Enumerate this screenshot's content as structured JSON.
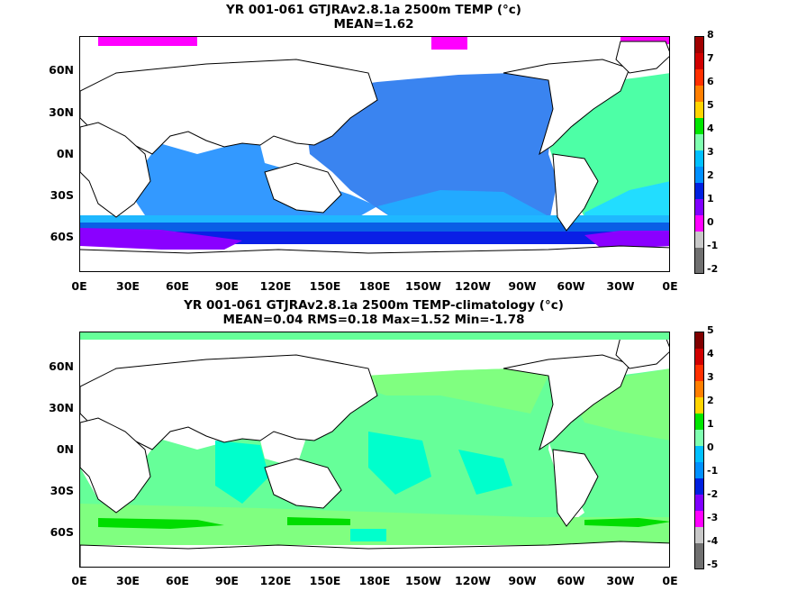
{
  "panels": [
    {
      "title_line1": "YR 001-061 GTJRAv2.8.1a 2500m TEMP (°c)",
      "title_line2": "MEAN=1.62",
      "colorbar": {
        "labels": [
          "8",
          "7",
          "6",
          "5",
          "4",
          "3",
          "2",
          "1",
          "0",
          "-1",
          "-2"
        ],
        "colors": [
          "#a00000",
          "#d00000",
          "#ff3000",
          "#ff7f00",
          "#ffd400",
          "#00e600",
          "#7fffb0",
          "#00c0ff",
          "#0090ff",
          "#0020e0",
          "#8000ff",
          "#ff00ff",
          "#c8c8c8",
          "#707070"
        ]
      }
    },
    {
      "title_line1": "YR 001-061 GTJRAv2.8.1a 2500m TEMP-climatology (°c)",
      "title_line2": "MEAN=0.04   RMS=0.18   Max=1.52   Min=-1.78",
      "colorbar": {
        "labels": [
          "5",
          "4",
          "3",
          "2",
          "1",
          "0",
          "-1",
          "-2",
          "-3",
          "-4",
          "-5"
        ],
        "colors": [
          "#800000",
          "#d00000",
          "#ff3000",
          "#ff7f00",
          "#ffd400",
          "#00e600",
          "#7fffb0",
          "#00c0ff",
          "#0090ff",
          "#0020e0",
          "#8000ff",
          "#ff00ff",
          "#c8c8c8",
          "#707070"
        ]
      }
    }
  ],
  "axes": {
    "lat_labels": [
      "60N",
      "30N",
      "0N",
      "30S",
      "60S"
    ],
    "lon_labels": [
      "0E",
      "30E",
      "60E",
      "90E",
      "120E",
      "150E",
      "180E",
      "150W",
      "120W",
      "90W",
      "60W",
      "30W",
      "0E"
    ]
  },
  "legend_colors": {
    "top_map": {
      "ocean_main": "#3399ff",
      "ocean_deep": "#1f7fff",
      "atlantic": "#4dffa6",
      "southern": "#0a1fe6",
      "antarctic": "#8a00ff",
      "arctic": "#ff00ff"
    },
    "bottom_map": {
      "ocean_main": "#66ff99",
      "ocean_light": "#80ff80",
      "anomaly_cyan": "#00ffcc",
      "anomaly_green": "#00dd00"
    }
  }
}
